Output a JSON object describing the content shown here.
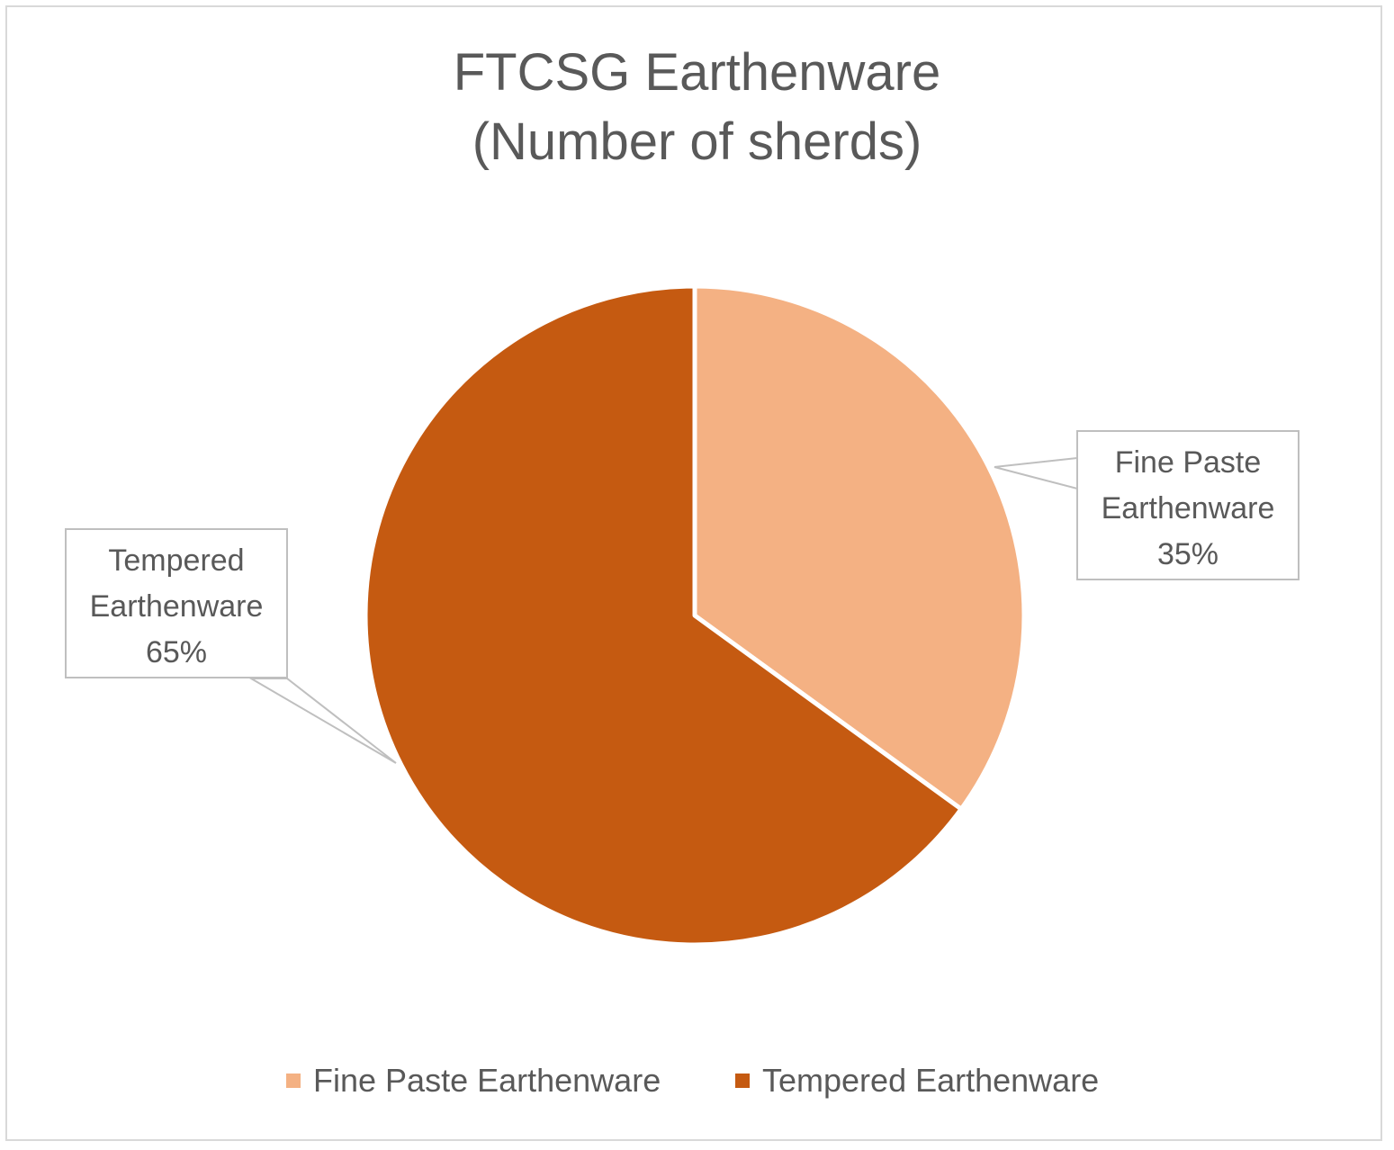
{
  "chart_data": {
    "type": "pie",
    "title_lines": [
      "FTCSG Earthenware",
      "(Number of sherds)"
    ],
    "slices": [
      {
        "name": "Fine Paste Earthenware",
        "value": 35,
        "label_lines": [
          "Fine Paste",
          "Earthenware",
          "35%"
        ],
        "color": "#F4B183"
      },
      {
        "name": "Tempered Earthenware",
        "value": 65,
        "label_lines": [
          "Tempered",
          "Earthenware",
          "65%"
        ],
        "color": "#C55A11"
      }
    ],
    "legend": {
      "placement": "bottom",
      "entries": [
        "Fine Paste Earthenware",
        "Tempered Earthenware"
      ]
    }
  }
}
